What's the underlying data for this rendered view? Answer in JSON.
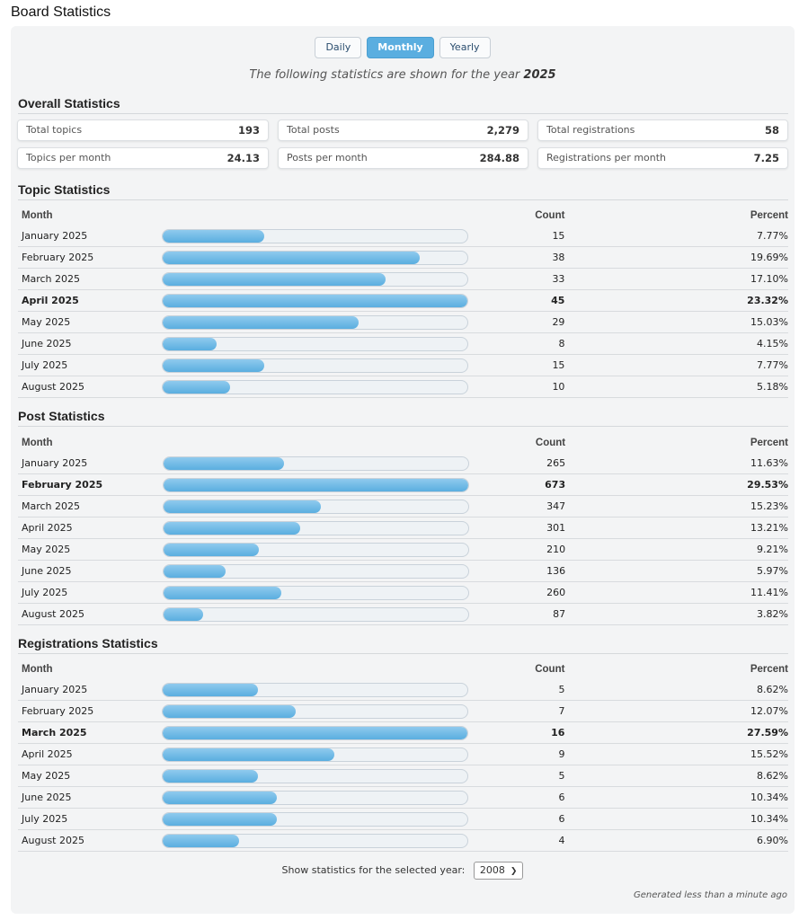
{
  "page": {
    "title": "Board Statistics"
  },
  "tabs": [
    {
      "label": "Daily",
      "active": false
    },
    {
      "label": "Monthly",
      "active": true
    },
    {
      "label": "Yearly",
      "active": false
    }
  ],
  "year_note": {
    "prefix": "The following statistics are shown for the year",
    "year": "2025"
  },
  "overall": {
    "heading": "Overall Statistics",
    "boxes": [
      {
        "label": "Total topics",
        "value": "193"
      },
      {
        "label": "Total posts",
        "value": "2,279"
      },
      {
        "label": "Total registrations",
        "value": "58"
      },
      {
        "label": "Topics per month",
        "value": "24.13"
      },
      {
        "label": "Posts per month",
        "value": "284.88"
      },
      {
        "label": "Registrations per month",
        "value": "7.25"
      }
    ]
  },
  "columns": {
    "month": "Month",
    "count": "Count",
    "percent": "Percent"
  },
  "sections": [
    {
      "heading": "Topic Statistics",
      "rows": [
        {
          "month": "January 2025",
          "count": "15",
          "percent": "7.77%",
          "fill": 0.333,
          "strong": false
        },
        {
          "month": "February 2025",
          "count": "38",
          "percent": "19.69%",
          "fill": 0.844,
          "strong": false
        },
        {
          "month": "March 2025",
          "count": "33",
          "percent": "17.10%",
          "fill": 0.733,
          "strong": false
        },
        {
          "month": "April 2025",
          "count": "45",
          "percent": "23.32%",
          "fill": 1.0,
          "strong": true
        },
        {
          "month": "May 2025",
          "count": "29",
          "percent": "15.03%",
          "fill": 0.644,
          "strong": false
        },
        {
          "month": "June 2025",
          "count": "8",
          "percent": "4.15%",
          "fill": 0.178,
          "strong": false
        },
        {
          "month": "July 2025",
          "count": "15",
          "percent": "7.77%",
          "fill": 0.333,
          "strong": false
        },
        {
          "month": "August 2025",
          "count": "10",
          "percent": "5.18%",
          "fill": 0.222,
          "strong": false
        }
      ]
    },
    {
      "heading": "Post Statistics",
      "rows": [
        {
          "month": "January 2025",
          "count": "265",
          "percent": "11.63%",
          "fill": 0.394,
          "strong": false
        },
        {
          "month": "February 2025",
          "count": "673",
          "percent": "29.53%",
          "fill": 1.0,
          "strong": true
        },
        {
          "month": "March 2025",
          "count": "347",
          "percent": "15.23%",
          "fill": 0.516,
          "strong": false
        },
        {
          "month": "April 2025",
          "count": "301",
          "percent": "13.21%",
          "fill": 0.447,
          "strong": false
        },
        {
          "month": "May 2025",
          "count": "210",
          "percent": "9.21%",
          "fill": 0.312,
          "strong": false
        },
        {
          "month": "June 2025",
          "count": "136",
          "percent": "5.97%",
          "fill": 0.202,
          "strong": false
        },
        {
          "month": "July 2025",
          "count": "260",
          "percent": "11.41%",
          "fill": 0.386,
          "strong": false
        },
        {
          "month": "August 2025",
          "count": "87",
          "percent": "3.82%",
          "fill": 0.129,
          "strong": false
        }
      ]
    },
    {
      "heading": "Registrations Statistics",
      "rows": [
        {
          "month": "January 2025",
          "count": "5",
          "percent": "8.62%",
          "fill": 0.3125,
          "strong": false
        },
        {
          "month": "February 2025",
          "count": "7",
          "percent": "12.07%",
          "fill": 0.4375,
          "strong": false
        },
        {
          "month": "March 2025",
          "count": "16",
          "percent": "27.59%",
          "fill": 1.0,
          "strong": true
        },
        {
          "month": "April 2025",
          "count": "9",
          "percent": "15.52%",
          "fill": 0.5625,
          "strong": false
        },
        {
          "month": "May 2025",
          "count": "5",
          "percent": "8.62%",
          "fill": 0.3125,
          "strong": false
        },
        {
          "month": "June 2025",
          "count": "6",
          "percent": "10.34%",
          "fill": 0.375,
          "strong": false
        },
        {
          "month": "July 2025",
          "count": "6",
          "percent": "10.34%",
          "fill": 0.375,
          "strong": false
        },
        {
          "month": "August 2025",
          "count": "4",
          "percent": "6.90%",
          "fill": 0.25,
          "strong": false
        }
      ]
    }
  ],
  "year_select": {
    "label": "Show statistics for the selected year:",
    "value": "2008"
  },
  "footer": {
    "generated": "Generated less than a minute ago"
  },
  "colors": {
    "accent": "#5aaee0",
    "panel": "#f3f4f5"
  }
}
